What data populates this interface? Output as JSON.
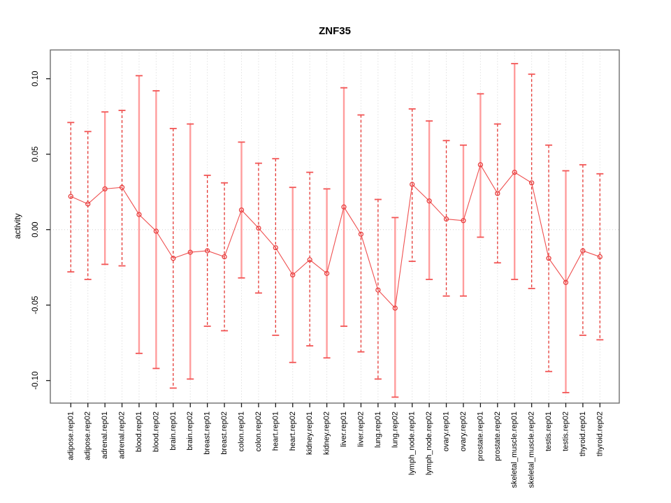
{
  "page": {
    "background": "#ffffff"
  },
  "chart_data": {
    "type": "line",
    "subtype": "points-with-error-bars",
    "title": "ZNF35",
    "xlabel": "",
    "ylabel": "activity",
    "legend": "none",
    "grid": "vertical dotted gridline at every category; dotted horizontal line at y=0",
    "ylim": [
      -0.115,
      0.119
    ],
    "yticks": [
      0.1,
      0.05,
      0.0,
      -0.05,
      -0.1
    ],
    "ytick_labels": [
      "0.10",
      "0.05",
      "0.00",
      "-0.05",
      "-0.10"
    ],
    "categories": [
      "adipose.rep01",
      "adipose.rep02",
      "adrenal.rep01",
      "adrenal.rep02",
      "blood.rep01",
      "blood.rep02",
      "brain.rep01",
      "brain.rep02",
      "breast.rep01",
      "breast.rep02",
      "colon.rep01",
      "colon.rep02",
      "heart.rep01",
      "heart.rep02",
      "kidney.rep01",
      "kidney.rep02",
      "liver.rep01",
      "liver.rep02",
      "lung.rep01",
      "lung.rep02",
      "lymph_node.rep01",
      "lymph_node.rep02",
      "ovary.rep01",
      "ovary.rep02",
      "prostate.rep01",
      "prostate.rep02",
      "skeletal_muscle.rep01",
      "skeletal_muscle.rep02",
      "testis.rep01",
      "testis.rep02",
      "thyroid.rep01",
      "thyroid.rep02"
    ],
    "series": [
      {
        "name": "activity",
        "values": [
          0.022,
          0.017,
          0.027,
          0.028,
          0.01,
          -0.001,
          -0.019,
          -0.015,
          -0.014,
          -0.018,
          0.013,
          0.001,
          -0.012,
          -0.03,
          -0.02,
          -0.029,
          0.015,
          -0.003,
          -0.04,
          -0.052,
          0.03,
          0.019,
          0.007,
          0.006,
          0.043,
          0.024,
          0.038,
          0.031,
          -0.019,
          -0.035,
          -0.014,
          -0.018
        ],
        "upper": [
          0.071,
          0.065,
          0.078,
          0.079,
          0.102,
          0.092,
          0.067,
          0.07,
          0.036,
          0.031,
          0.058,
          0.044,
          0.047,
          0.028,
          0.038,
          0.027,
          0.094,
          0.076,
          0.02,
          0.008,
          0.08,
          0.072,
          0.059,
          0.056,
          0.09,
          0.07,
          0.11,
          0.103,
          0.056,
          0.039,
          0.043,
          0.037
        ],
        "lower": [
          -0.028,
          -0.033,
          -0.023,
          -0.024,
          -0.082,
          -0.092,
          -0.105,
          -0.099,
          -0.064,
          -0.067,
          -0.032,
          -0.042,
          -0.07,
          -0.088,
          -0.077,
          -0.085,
          -0.064,
          -0.081,
          -0.099,
          -0.111,
          -0.021,
          -0.033,
          -0.044,
          -0.044,
          -0.005,
          -0.022,
          -0.033,
          -0.039,
          -0.094,
          -0.108,
          -0.07,
          -0.073
        ]
      }
    ],
    "bar_styles": [
      "dashed",
      "dashed",
      "solid",
      "dashed",
      "solid",
      "solid",
      "dashed",
      "solid",
      "dashed",
      "dashed",
      "solid",
      "dashed",
      "dashed",
      "solid",
      "dashed",
      "solid",
      "solid",
      "dashed",
      "dashed",
      "solid",
      "dashed",
      "solid",
      "dashed",
      "solid",
      "solid",
      "dashed",
      "solid",
      "dashed",
      "dashed",
      "solid",
      "dashed",
      "dashed"
    ],
    "colors": {
      "point": "#e84040",
      "series_line": "#ef5050",
      "solid_bar": "#ff9d9d",
      "dashed_bar": "#e53935",
      "cap": "#f25555",
      "grid": "#d2d2d2",
      "box": "#6e6e6e",
      "tick": "#1a1a1a",
      "text": "#000000"
    }
  }
}
